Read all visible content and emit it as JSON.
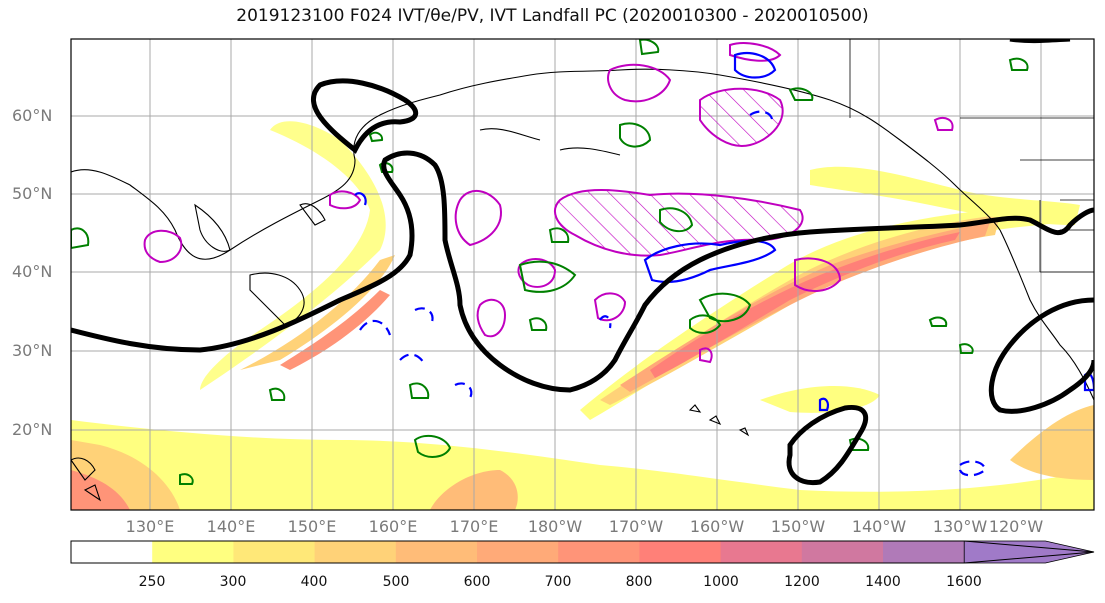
{
  "title": "2019123100 F024 IVT/θe/PV, IVT Landfall PC (2020010300 - 2020010500)",
  "lat_labels": [
    "60°N",
    "50°N",
    "40°N",
    "30°N",
    "20°N"
  ],
  "lon_labels": [
    "130°E",
    "140°E",
    "150°E",
    "160°E",
    "170°E",
    "180°W",
    "170°W",
    "160°W",
    "150°W",
    "140°W",
    "130°W",
    "120°W"
  ],
  "colorbar": {
    "ticks": [
      "250",
      "300",
      "400",
      "500",
      "600",
      "700",
      "800",
      "1000",
      "1200",
      "1400",
      "1600"
    ],
    "colors": [
      "#ffffff",
      "#ffff80",
      "#ffe878",
      "#ffd278",
      "#ffbc78",
      "#ffaa78",
      "#ff9478",
      "#ff8078",
      "#e87890",
      "#d078a0",
      "#b07ab8",
      "#a07ac8"
    ]
  },
  "legend_colors": {
    "ivt_landfall_pc": "#000000",
    "pv_contour": "#008000",
    "theta_e_contour_solid": "#0000ff",
    "hatched_region": "#c000c0"
  }
}
